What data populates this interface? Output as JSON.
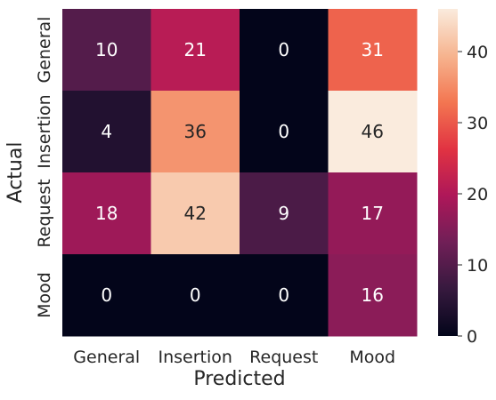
{
  "chart_data": {
    "type": "heatmap",
    "title": "",
    "xlabel": "Predicted",
    "ylabel": "Actual",
    "x_categories": [
      "General",
      "Insertion",
      "Request",
      "Mood"
    ],
    "y_categories": [
      "General",
      "Insertion",
      "Request",
      "Mood"
    ],
    "values": [
      [
        10,
        21,
        0,
        31
      ],
      [
        4,
        36,
        0,
        46
      ],
      [
        18,
        42,
        9,
        17
      ],
      [
        0,
        0,
        0,
        16
      ]
    ],
    "colorbar": {
      "min": 0,
      "max": 46,
      "ticks": [
        0,
        10,
        20,
        30,
        40
      ],
      "colormap": "rocket",
      "stops": [
        "#03051a",
        "#36193e",
        "#701f57",
        "#ae1759",
        "#e13342",
        "#f37651",
        "#f6b48f",
        "#faebdd"
      ]
    }
  }
}
